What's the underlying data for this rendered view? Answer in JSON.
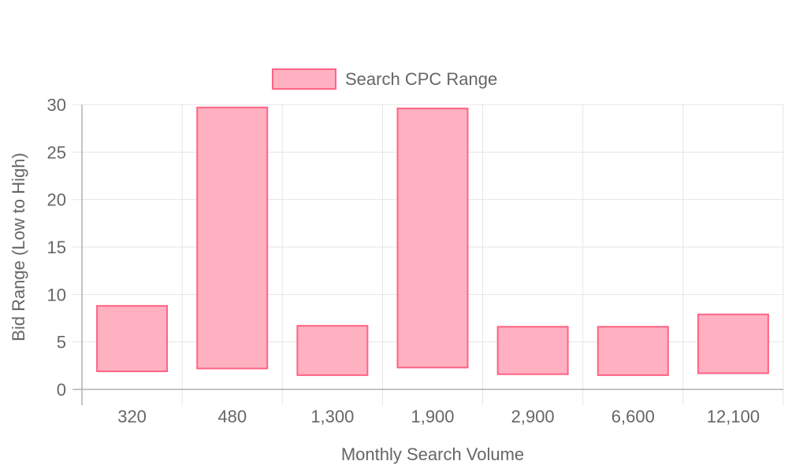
{
  "chart_data": {
    "type": "bar",
    "title": "",
    "xlabel": "Monthly Search Volume",
    "ylabel": "Bid Range (Low to High)",
    "categories": [
      "320",
      "480",
      "1,300",
      "1,900",
      "2,900",
      "6,600",
      "12,100"
    ],
    "series": [
      {
        "name": "Search CPC Range",
        "ranges": [
          [
            1.9,
            8.8
          ],
          [
            2.2,
            29.7
          ],
          [
            1.5,
            6.7
          ],
          [
            2.3,
            29.6
          ],
          [
            1.6,
            6.6
          ],
          [
            1.5,
            6.6
          ],
          [
            1.7,
            7.9
          ]
        ]
      }
    ],
    "ylim": [
      0,
      30
    ],
    "yticks": [
      0,
      5,
      10,
      15,
      20,
      25,
      30
    ],
    "grid": true,
    "legend_position": "top",
    "colors": {
      "bar_fill": "#ffb1c1",
      "bar_stroke": "#ff6384",
      "grid": "#e5e5e5",
      "axis": "#b0b0b0",
      "text": "#666666"
    }
  }
}
